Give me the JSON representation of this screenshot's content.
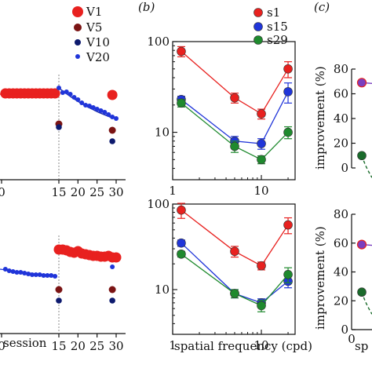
{
  "panel_labels": {
    "b": "(b)",
    "c": "(c)"
  },
  "colors": {
    "red": "#e8211f",
    "darkred": "#7b1414",
    "navy": "#0d1a6e",
    "blue": "#2035d9",
    "green": "#1f8a2e",
    "purple": "#7a3fbf",
    "darkgreen": "#1a6b2b"
  },
  "chart_data": [
    {
      "id": "a-top",
      "type": "scatter",
      "legend": [
        "V1",
        "V5",
        "V10",
        "V20"
      ],
      "legend_placement": "top-right",
      "x_ticks": [
        "0",
        "15",
        "20",
        "25",
        "30"
      ],
      "reference_line_x": 15,
      "series": [
        {
          "name": "V1",
          "points": [
            [
              1,
              119
            ],
            [
              2,
              119
            ],
            [
              3,
              119
            ],
            [
              4,
              119
            ],
            [
              5,
              119
            ],
            [
              6,
              119
            ],
            [
              7,
              119
            ],
            [
              8,
              119
            ],
            [
              9,
              119
            ],
            [
              10,
              119
            ],
            [
              11,
              119
            ],
            [
              12,
              119
            ],
            [
              13,
              119
            ],
            [
              14,
              119
            ],
            [
              29,
              121
            ]
          ]
        },
        {
          "name": "V5",
          "points": [
            [
              15,
              158
            ],
            [
              29,
              166
            ]
          ]
        },
        {
          "name": "V10",
          "points": [
            [
              15,
              162
            ],
            [
              29,
              180
            ]
          ]
        },
        {
          "name": "V20",
          "points": [
            [
              15,
              112
            ],
            [
              16,
              118
            ],
            [
              17,
              117
            ],
            [
              18,
              120
            ],
            [
              19,
              124
            ],
            [
              20,
              127
            ],
            [
              21,
              131
            ],
            [
              22,
              134
            ],
            [
              23,
              135
            ],
            [
              24,
              137
            ],
            [
              25,
              139
            ],
            [
              26,
              141
            ],
            [
              27,
              143
            ],
            [
              28,
              146
            ],
            [
              29,
              149
            ],
            [
              30,
              151
            ]
          ]
        }
      ]
    },
    {
      "id": "a-bottom",
      "type": "scatter",
      "x_ticks": [
        "0",
        "15",
        "20",
        "25",
        "30"
      ],
      "xlabel": "session",
      "reference_line_x": 15,
      "series": [
        {
          "name": "V1",
          "points": [
            [
              15,
              318
            ],
            [
              16,
              318
            ],
            [
              17,
              319
            ],
            [
              18,
              321
            ],
            [
              19,
              322
            ],
            [
              20,
              320
            ],
            [
              21,
              323
            ],
            [
              22,
              324
            ],
            [
              23,
              325
            ],
            [
              24,
              326
            ],
            [
              25,
              326
            ],
            [
              26,
              327
            ],
            [
              27,
              327
            ],
            [
              28,
              326
            ],
            [
              29,
              328
            ],
            [
              30,
              328
            ]
          ]
        },
        {
          "name": "V5",
          "points": [
            [
              15,
              369
            ],
            [
              29,
              369
            ]
          ]
        },
        {
          "name": "V10",
          "points": [
            [
              15,
              383
            ],
            [
              29,
              383
            ]
          ]
        },
        {
          "name": "V20",
          "points": [
            [
              1,
              343
            ],
            [
              2,
              345
            ],
            [
              3,
              346
            ],
            [
              4,
              347
            ],
            [
              5,
              347
            ],
            [
              6,
              348
            ],
            [
              7,
              349
            ],
            [
              8,
              350
            ],
            [
              9,
              350
            ],
            [
              10,
              350
            ],
            [
              11,
              351
            ],
            [
              12,
              351
            ],
            [
              13,
              351
            ],
            [
              14,
              352
            ],
            [
              29,
              340
            ]
          ]
        }
      ]
    },
    {
      "id": "b-top",
      "type": "line",
      "xscale": "log",
      "yscale": "log",
      "legend": [
        "s1",
        "s15",
        "s29"
      ],
      "legend_placement": "top-right",
      "x_ticks": [
        "1",
        "10"
      ],
      "y_ticks": [
        "10",
        "100"
      ],
      "x": [
        1.25,
        5,
        10,
        20
      ],
      "series": [
        {
          "name": "s1",
          "values": [
            78,
            24,
            16,
            50
          ],
          "errors": [
            10,
            3,
            2,
            10
          ]
        },
        {
          "name": "s15",
          "values": [
            23,
            8,
            7.5,
            28
          ],
          "errors": [
            2,
            1,
            1,
            7
          ]
        },
        {
          "name": "s29",
          "values": [
            21,
            7,
            5,
            10
          ],
          "errors": [
            2,
            1,
            0.5,
            1.5
          ]
        }
      ]
    },
    {
      "id": "b-bottom",
      "type": "line",
      "xscale": "log",
      "yscale": "log",
      "x_ticks": [
        "1",
        "10"
      ],
      "y_ticks": [
        "10",
        "100"
      ],
      "xlabel": "spatial frequency (cpd)",
      "x": [
        1.25,
        5,
        10,
        20
      ],
      "series": [
        {
          "name": "s1",
          "values": [
            85,
            28,
            19,
            57
          ],
          "errors": [
            17,
            4,
            2,
            12
          ]
        },
        {
          "name": "s15",
          "values": [
            35,
            9,
            7,
            12.5
          ],
          "errors": [
            3,
            1,
            0.8,
            2
          ]
        },
        {
          "name": "s29",
          "values": [
            26,
            9,
            6.5,
            15
          ],
          "errors": [
            2,
            1,
            1,
            3
          ]
        }
      ]
    },
    {
      "id": "c-top",
      "type": "line",
      "ylabel": "improvement (%)",
      "y_ticks": [
        "0",
        "20",
        "40",
        "60",
        "80"
      ],
      "ylim": [
        0,
        80
      ],
      "series": [
        {
          "name": "purple",
          "points": [
            [
              0,
              69
            ]
          ]
        },
        {
          "name": "green",
          "points": [
            [
              0,
              10
            ]
          ]
        }
      ]
    },
    {
      "id": "c-bottom",
      "type": "line",
      "ylabel": "improvement (%)",
      "y_ticks": [
        "0",
        "20",
        "40",
        "60",
        "80"
      ],
      "ylim": [
        0,
        80
      ],
      "x_ticks": [
        "0"
      ],
      "xlabel": "sp",
      "series": [
        {
          "name": "purple",
          "points": [
            [
              0,
              59
            ]
          ]
        },
        {
          "name": "green",
          "points": [
            [
              0,
              26
            ]
          ]
        }
      ]
    }
  ]
}
